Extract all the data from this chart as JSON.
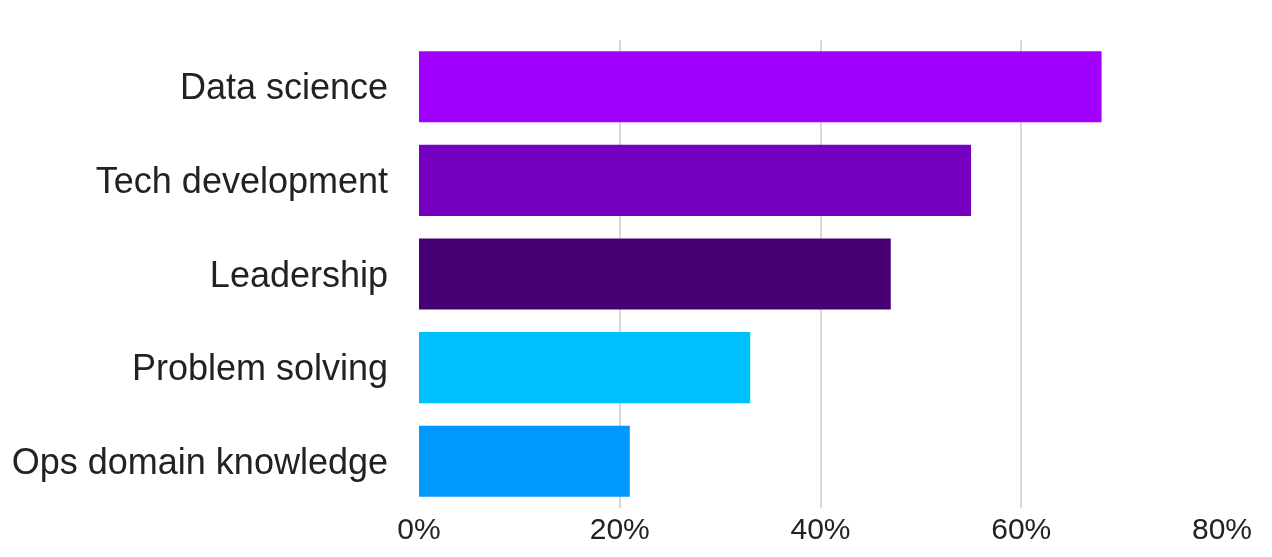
{
  "chart_data": {
    "type": "bar",
    "orientation": "horizontal",
    "categories": [
      "Data science",
      "Tech development",
      "Leadership",
      "Problem solving",
      "Ops domain knowledge"
    ],
    "values": [
      68,
      55,
      47,
      33,
      21
    ],
    "colors": [
      "#a100ff",
      "#7500c0",
      "#460073",
      "#00bfff",
      "#0099ff"
    ],
    "xlim": [
      0,
      80
    ],
    "xticks": [
      {
        "value": 0,
        "label": "0%"
      },
      {
        "value": 20,
        "label": "20%"
      },
      {
        "value": 40,
        "label": "40%"
      },
      {
        "value": 60,
        "label": "60%"
      },
      {
        "value": 80,
        "label": "80%"
      }
    ],
    "grid": "x"
  }
}
